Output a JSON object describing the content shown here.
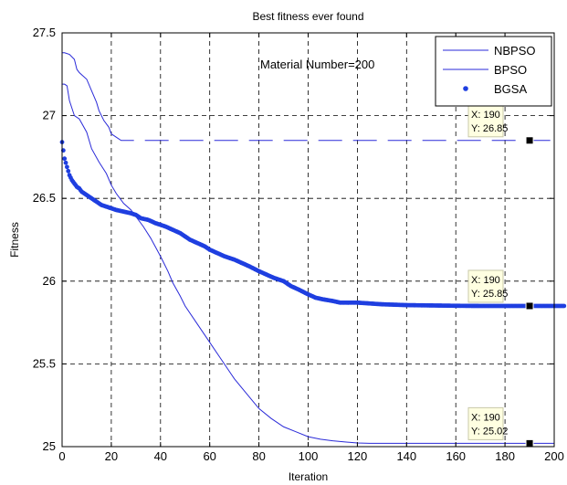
{
  "chart_data": {
    "type": "line",
    "title": "Best fitness ever found",
    "xlabel": "Iteration",
    "ylabel": "Fitness",
    "xlim": [
      0,
      200
    ],
    "ylim": [
      25,
      27.5
    ],
    "xticks": [
      0,
      20,
      40,
      60,
      80,
      100,
      120,
      140,
      160,
      180,
      200
    ],
    "yticks": [
      25,
      25.5,
      26,
      26.5,
      27,
      27.5
    ],
    "ytick_labels": [
      "25",
      "25.5",
      "26",
      "26.5",
      "27",
      "27.5"
    ],
    "grid": true,
    "legend_position": "top-right",
    "annotation": "Material Number=200",
    "series": [
      {
        "name": "NBPSO",
        "style": "line",
        "color": "#2a2ad8",
        "points": [
          [
            0,
            27.38
          ],
          [
            1,
            27.38
          ],
          [
            3,
            27.37
          ],
          [
            5,
            27.34
          ],
          [
            6,
            27.28
          ],
          [
            7,
            27.26
          ],
          [
            10,
            27.22
          ],
          [
            12,
            27.15
          ],
          [
            14,
            27.08
          ],
          [
            15,
            27.03
          ],
          [
            17,
            26.97
          ],
          [
            19,
            26.93
          ],
          [
            20,
            26.89
          ],
          [
            22,
            26.87
          ],
          [
            24,
            26.85
          ],
          [
            200,
            26.85
          ]
        ]
      },
      {
        "name": "BPSO",
        "style": "line",
        "color": "#2a2ad8",
        "points": [
          [
            0,
            27.19
          ],
          [
            1,
            27.19
          ],
          [
            2,
            27.18
          ],
          [
            3,
            27.09
          ],
          [
            5,
            27.0
          ],
          [
            7,
            26.98
          ],
          [
            10,
            26.9
          ],
          [
            12,
            26.8
          ],
          [
            15,
            26.72
          ],
          [
            18,
            26.65
          ],
          [
            20,
            26.58
          ],
          [
            22,
            26.53
          ],
          [
            25,
            26.47
          ],
          [
            28,
            26.43
          ],
          [
            30,
            26.39
          ],
          [
            33,
            26.33
          ],
          [
            36,
            26.26
          ],
          [
            40,
            26.15
          ],
          [
            43,
            26.06
          ],
          [
            45,
            25.99
          ],
          [
            48,
            25.91
          ],
          [
            50,
            25.85
          ],
          [
            55,
            25.74
          ],
          [
            60,
            25.63
          ],
          [
            65,
            25.52
          ],
          [
            70,
            25.41
          ],
          [
            75,
            25.32
          ],
          [
            80,
            25.23
          ],
          [
            85,
            25.17
          ],
          [
            90,
            25.12
          ],
          [
            95,
            25.09
          ],
          [
            100,
            25.06
          ],
          [
            105,
            25.045
          ],
          [
            110,
            25.035
          ],
          [
            115,
            25.028
          ],
          [
            120,
            25.022
          ],
          [
            125,
            25.02
          ],
          [
            200,
            25.02
          ]
        ]
      },
      {
        "name": "BGSA",
        "style": "markers",
        "color": "#1f3fe0",
        "points": [
          [
            0,
            26.84
          ],
          [
            1,
            26.74
          ],
          [
            2,
            26.69
          ],
          [
            3,
            26.64
          ],
          [
            4,
            26.61
          ],
          [
            5,
            26.59
          ],
          [
            6,
            26.57
          ],
          [
            7,
            26.56
          ],
          [
            8,
            26.54
          ],
          [
            9,
            26.53
          ],
          [
            10,
            26.52
          ],
          [
            12,
            26.5
          ],
          [
            14,
            26.48
          ],
          [
            16,
            26.46
          ],
          [
            18,
            26.45
          ],
          [
            20,
            26.44
          ],
          [
            22,
            26.43
          ],
          [
            25,
            26.42
          ],
          [
            28,
            26.41
          ],
          [
            30,
            26.4
          ],
          [
            32,
            26.38
          ],
          [
            35,
            26.37
          ],
          [
            38,
            26.35
          ],
          [
            40,
            26.34
          ],
          [
            42,
            26.33
          ],
          [
            45,
            26.31
          ],
          [
            48,
            26.29
          ],
          [
            50,
            26.27
          ],
          [
            52,
            26.25
          ],
          [
            55,
            26.23
          ],
          [
            58,
            26.21
          ],
          [
            60,
            26.19
          ],
          [
            63,
            26.17
          ],
          [
            66,
            26.15
          ],
          [
            70,
            26.13
          ],
          [
            73,
            26.11
          ],
          [
            76,
            26.09
          ],
          [
            80,
            26.06
          ],
          [
            83,
            26.04
          ],
          [
            86,
            26.02
          ],
          [
            90,
            26.0
          ],
          [
            93,
            25.97
          ],
          [
            96,
            25.95
          ],
          [
            100,
            25.92
          ],
          [
            103,
            25.9
          ],
          [
            106,
            25.89
          ],
          [
            110,
            25.88
          ],
          [
            113,
            25.87
          ],
          [
            116,
            25.87
          ],
          [
            120,
            25.87
          ],
          [
            125,
            25.865
          ],
          [
            130,
            25.86
          ],
          [
            140,
            25.855
          ],
          [
            150,
            25.853
          ],
          [
            160,
            25.851
          ],
          [
            170,
            25.85
          ],
          [
            180,
            25.85
          ],
          [
            190,
            25.85
          ],
          [
            200,
            25.85
          ],
          [
            204,
            25.85
          ]
        ]
      }
    ],
    "datatips": [
      {
        "x_label": "X: 190",
        "y_label": "Y: 26.85",
        "x": 190,
        "y": 26.85
      },
      {
        "x_label": "X: 190",
        "y_label": "Y: 25.85",
        "x": 190,
        "y": 25.85
      },
      {
        "x_label": "X: 190",
        "y_label": "Y: 25.02",
        "x": 190,
        "y": 25.02
      }
    ]
  }
}
